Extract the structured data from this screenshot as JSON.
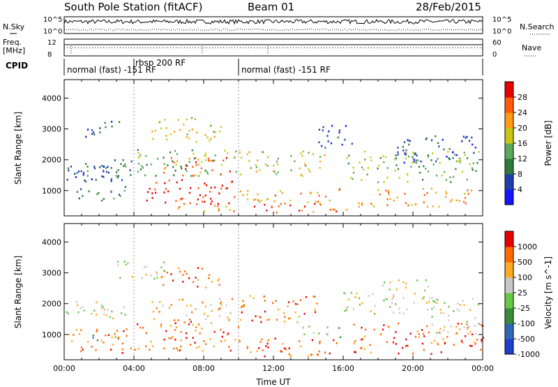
{
  "header": {
    "station": "South Pole Station (fitACF)",
    "beam": "Beam 01",
    "date": "28/Feb/2015"
  },
  "noise_panel": {
    "left_label": "N.Sky",
    "right_label": "N.Search",
    "left_ticks": [
      "10^5",
      "10^0"
    ],
    "right_ticks": [
      "10^5",
      "10^0"
    ]
  },
  "freq_panel": {
    "left_label_1": "Freq.",
    "left_label_2": "[MHz]",
    "right_label": "Nave",
    "left_ticks": [
      "12",
      "8"
    ],
    "right_ticks": [
      "60",
      "0"
    ]
  },
  "cpid": {
    "label": "CPID",
    "segments": [
      {
        "text": "normal (fast) -151 RF",
        "start_hour": 0
      },
      {
        "text": "rbsp 200 RF",
        "start_hour": 4
      },
      {
        "text": "normal (fast) -151 RF",
        "start_hour": 10
      }
    ]
  },
  "chart_data": [
    {
      "type": "heatmap",
      "quantity": "Power",
      "ylabel": "Slant Range [km]",
      "xlabel": "",
      "xlim_hours": [
        0,
        24
      ],
      "ylim_km": [
        180,
        4600
      ],
      "yticks": [
        1000,
        2000,
        3000,
        4000
      ],
      "colorbar": {
        "label": "Power [dB]",
        "ticks": [
          4,
          8,
          12,
          16,
          20,
          24,
          28
        ],
        "range": [
          0,
          32
        ],
        "colors": [
          "#1414ff",
          "#1e3fa8",
          "#2e7a3a",
          "#5aa85a",
          "#c8c814",
          "#ff9a14",
          "#ff5a0a",
          "#e60000"
        ]
      },
      "patches": [
        {
          "t": [
            0.0,
            3.9
          ],
          "r": [
            1300,
            2100
          ],
          "level": 1
        },
        {
          "t": [
            0.3,
            3.8
          ],
          "r": [
            1500,
            1900
          ],
          "level": 2
        },
        {
          "t": [
            0.5,
            3.7
          ],
          "r": [
            700,
            1150
          ],
          "level": 2
        },
        {
          "t": [
            1.2,
            3.2
          ],
          "r": [
            2700,
            3300
          ],
          "level": 1
        },
        {
          "t": [
            4.0,
            10.0
          ],
          "r": [
            1500,
            2400
          ],
          "level": 3
        },
        {
          "t": [
            4.5,
            9.8
          ],
          "r": [
            600,
            1400
          ],
          "level": 7
        },
        {
          "t": [
            5.5,
            9.5
          ],
          "r": [
            1500,
            2100
          ],
          "level": 6
        },
        {
          "t": [
            5.0,
            9.0
          ],
          "r": [
            2600,
            3400
          ],
          "level": 4
        },
        {
          "t": [
            6.0,
            10.0
          ],
          "r": [
            350,
            650
          ],
          "level": 5
        },
        {
          "t": [
            10.0,
            15.0
          ],
          "r": [
            1500,
            2300
          ],
          "level": 4
        },
        {
          "t": [
            10.0,
            16.0
          ],
          "r": [
            600,
            1100
          ],
          "level": 5
        },
        {
          "t": [
            10.5,
            16.5
          ],
          "r": [
            300,
            600
          ],
          "level": 6
        },
        {
          "t": [
            16.0,
            23.9
          ],
          "r": [
            1300,
            2300
          ],
          "level": 3
        },
        {
          "t": [
            16.5,
            23.5
          ],
          "r": [
            500,
            1100
          ],
          "level": 5
        },
        {
          "t": [
            19.0,
            23.8
          ],
          "r": [
            1900,
            2800
          ],
          "level": 1
        },
        {
          "t": [
            14.5,
            16.5
          ],
          "r": [
            2400,
            3200
          ],
          "level": 1
        }
      ]
    },
    {
      "type": "heatmap",
      "quantity": "Velocity",
      "ylabel": "Slant Range [km]",
      "xlabel": "Time UT",
      "xlim_hours": [
        0,
        24
      ],
      "ylim_km": [
        180,
        4600
      ],
      "yticks": [
        1000,
        2000,
        3000,
        4000
      ],
      "xticks": [
        "00:00",
        "04:00",
        "08:00",
        "12:00",
        "16:00",
        "20:00",
        "00:00"
      ],
      "colorbar": {
        "label": "Velocity [m s^-1]",
        "ticks": [
          "1000",
          "500",
          "100",
          "25",
          "-25",
          "-100",
          "-500",
          "-1000"
        ],
        "colors": [
          "#1e3fc8",
          "#2e6ab4",
          "#3a8a3a",
          "#66c844",
          "#c8c8c8",
          "#ffaa22",
          "#ff6a00",
          "#e60000"
        ]
      },
      "patches": [
        {
          "t": [
            0.0,
            3.9
          ],
          "r": [
            1500,
            2100
          ],
          "level": 4
        },
        {
          "t": [
            0.2,
            3.8
          ],
          "r": [
            400,
            1200
          ],
          "level": 6
        },
        {
          "t": [
            1.0,
            3.0
          ],
          "r": [
            800,
            1000
          ],
          "level": 2
        },
        {
          "t": [
            4.0,
            10.0
          ],
          "r": [
            500,
            1500
          ],
          "level": 6
        },
        {
          "t": [
            5.0,
            9.8
          ],
          "r": [
            1500,
            2200
          ],
          "level": 5
        },
        {
          "t": [
            5.5,
            9.0
          ],
          "r": [
            2500,
            3200
          ],
          "level": 6
        },
        {
          "t": [
            3.0,
            6.0
          ],
          "r": [
            2800,
            3400
          ],
          "level": 4
        },
        {
          "t": [
            10.0,
            14.5
          ],
          "r": [
            1400,
            2300
          ],
          "level": 6
        },
        {
          "t": [
            10.0,
            16.0
          ],
          "r": [
            300,
            900
          ],
          "level": 6
        },
        {
          "t": [
            13.5,
            16.0
          ],
          "r": [
            900,
            1300
          ],
          "level": 3
        },
        {
          "t": [
            16.0,
            22.0
          ],
          "r": [
            1700,
            2400
          ],
          "level": 4
        },
        {
          "t": [
            16.5,
            24.0
          ],
          "r": [
            400,
            1400
          ],
          "level": 6
        },
        {
          "t": [
            21.0,
            23.8
          ],
          "r": [
            1000,
            2200
          ],
          "level": 4
        },
        {
          "t": [
            18.0,
            21.0
          ],
          "r": [
            2400,
            2800
          ],
          "level": 4
        }
      ]
    }
  ]
}
